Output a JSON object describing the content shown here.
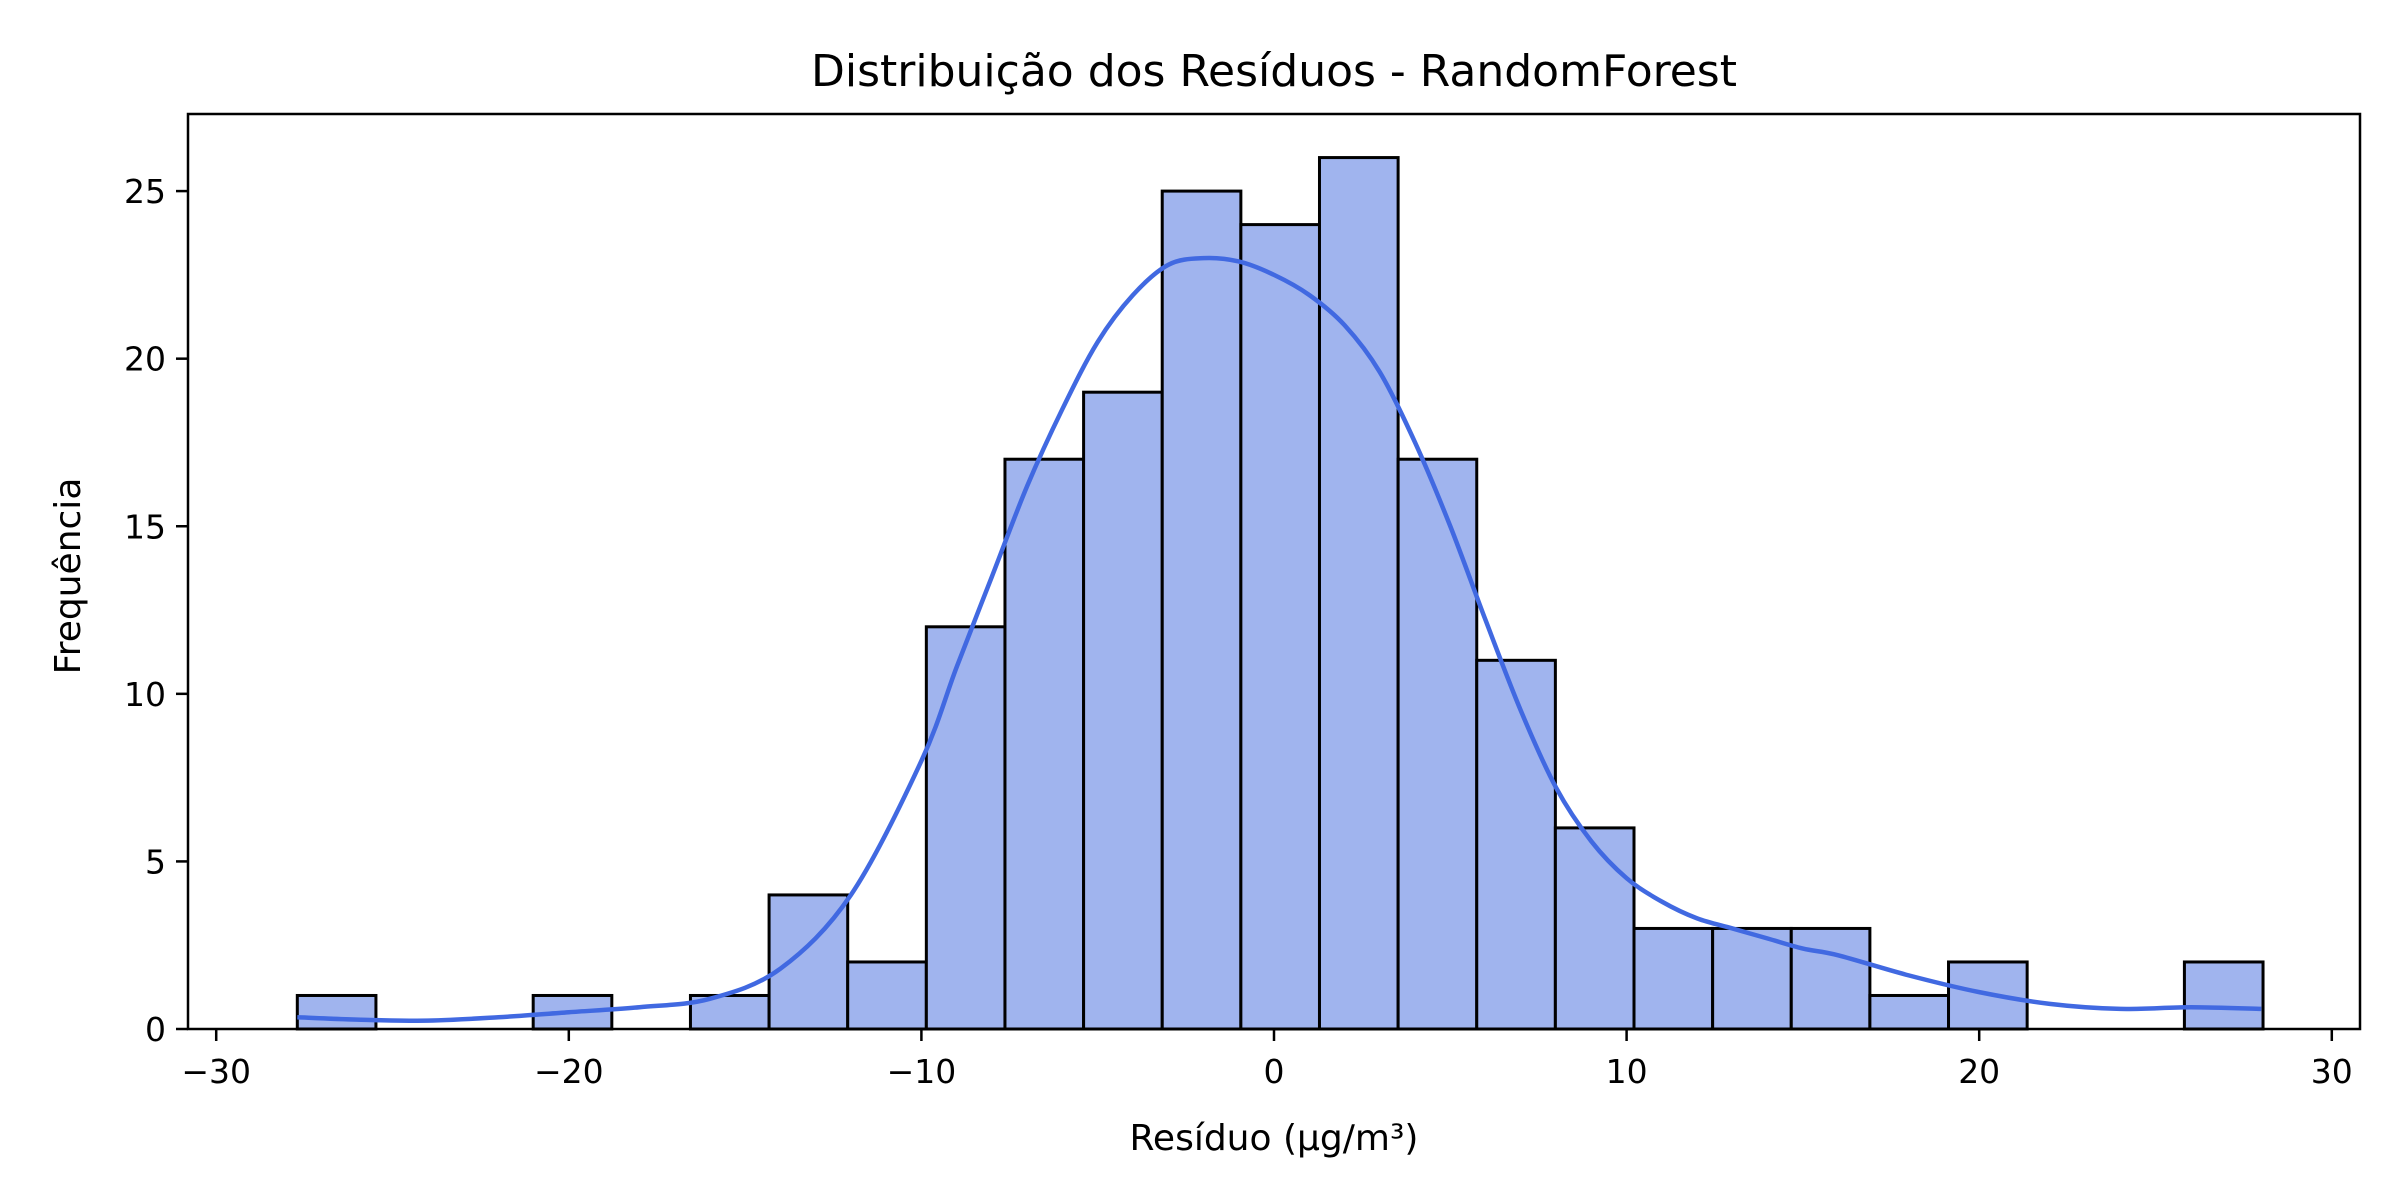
{
  "chart_data": {
    "type": "bar",
    "title": "Distribuição dos Resíduos - RandomForest",
    "xlabel": "Resíduo (µg/m³)",
    "ylabel": "Frequência",
    "xlim": [
      -30.8,
      30.8
    ],
    "ylim": [
      0,
      27.3
    ],
    "xticks": [
      -30,
      -20,
      -10,
      0,
      10,
      20,
      30
    ],
    "xtick_labels": [
      "−30",
      "−20",
      "−10",
      "0",
      "10",
      "20",
      "30"
    ],
    "yticks": [
      0,
      5,
      10,
      15,
      20,
      25
    ],
    "ytick_labels": [
      "0",
      "5",
      "10",
      "15",
      "20",
      "25"
    ],
    "grid": false,
    "bin_edges": [
      -27.7,
      -25.47,
      -23.24,
      -21.01,
      -18.78,
      -16.55,
      -14.32,
      -12.09,
      -9.86,
      -7.63,
      -5.4,
      -3.17,
      -0.94,
      1.29,
      3.52,
      5.75,
      7.98,
      10.21,
      12.44,
      14.67,
      16.9,
      19.13,
      21.36,
      23.59,
      25.82,
      28.05
    ],
    "counts": [
      1,
      0,
      0,
      1,
      0,
      1,
      4,
      2,
      12,
      17,
      19,
      25,
      24,
      26,
      17,
      11,
      6,
      3,
      3,
      3,
      1,
      2,
      0,
      0,
      2
    ],
    "kde_curve": {
      "x": [
        -27.7,
        -26,
        -24,
        -22,
        -20,
        -18,
        -16,
        -14,
        -12,
        -10,
        -9,
        -8,
        -7,
        -6,
        -5,
        -4,
        -3,
        -2,
        -1,
        0,
        1,
        2,
        3,
        4,
        5,
        6,
        7,
        8,
        9,
        10,
        11,
        12,
        13,
        14,
        15,
        16,
        18,
        20,
        22,
        24,
        26,
        28
      ],
      "y": [
        0.35,
        0.28,
        0.25,
        0.35,
        0.5,
        0.65,
        0.9,
        1.8,
        4.0,
        8.0,
        10.8,
        13.5,
        16.2,
        18.5,
        20.5,
        21.9,
        22.8,
        23.0,
        22.9,
        22.5,
        21.9,
        21.0,
        19.6,
        17.5,
        15.0,
        12.2,
        9.5,
        7.2,
        5.6,
        4.5,
        3.8,
        3.3,
        3.0,
        2.7,
        2.4,
        2.2,
        1.6,
        1.1,
        0.75,
        0.6,
        0.65,
        0.6
      ]
    },
    "colors": {
      "bar_fill": "#a0b4ee",
      "bar_edge": "#000000",
      "kde_line": "#4169e1"
    }
  }
}
